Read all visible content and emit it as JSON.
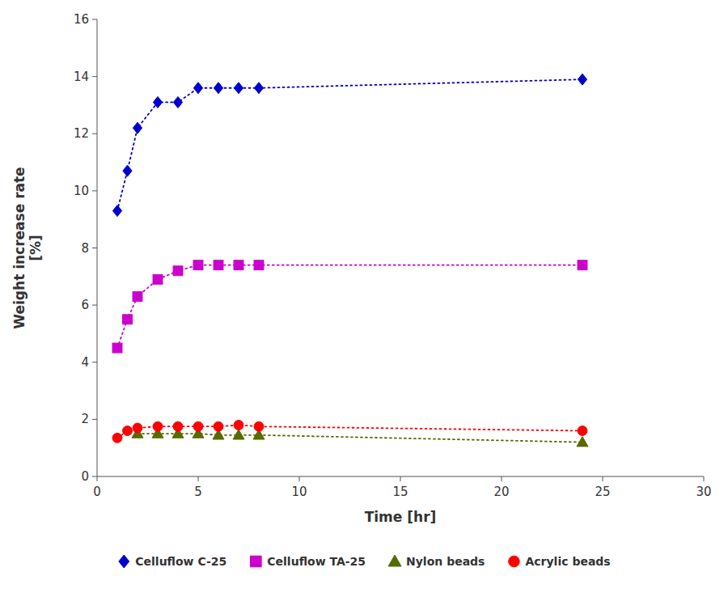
{
  "chart_data": {
    "type": "line",
    "xlabel": "Time [hr]",
    "ylabel": "Weight increase rate\n[%]",
    "xlim": [
      0,
      30
    ],
    "ylim": [
      0,
      16
    ],
    "xticks": [
      0,
      5,
      10,
      15,
      20,
      25,
      30
    ],
    "yticks": [
      0,
      2,
      4,
      6,
      8,
      10,
      12,
      14,
      16
    ],
    "grid": false,
    "legend": "bottom",
    "series": [
      {
        "name": "Celluflow C-25",
        "color": "#0000CC",
        "marker": "diamond",
        "line_style": "dotted",
        "x": [
          1,
          1.5,
          2,
          3,
          4,
          5,
          6,
          7,
          8,
          24
        ],
        "values": [
          9.3,
          10.7,
          12.2,
          13.1,
          13.1,
          13.6,
          13.6,
          13.6,
          13.6,
          13.9
        ]
      },
      {
        "name": "Celluflow TA-25",
        "color": "#CC00CC",
        "marker": "square",
        "line_style": "dotted",
        "x": [
          1,
          1.5,
          2,
          3,
          4,
          5,
          6,
          7,
          8,
          24
        ],
        "values": [
          4.5,
          5.5,
          6.3,
          6.9,
          7.2,
          7.4,
          7.4,
          7.4,
          7.4,
          7.4
        ]
      },
      {
        "name": "Nylon beads",
        "color": "#556B00",
        "marker": "triangle",
        "line_style": "dotted",
        "x": [
          2,
          3,
          4,
          5,
          6,
          7,
          8,
          24
        ],
        "values": [
          1.5,
          1.5,
          1.5,
          1.5,
          1.45,
          1.45,
          1.45,
          1.2
        ]
      },
      {
        "name": "Acrylic beads",
        "color": "#FF0000",
        "marker": "circle",
        "line_style": "dotted",
        "x": [
          1,
          1.5,
          2,
          3,
          4,
          5,
          6,
          7,
          8,
          24
        ],
        "values": [
          1.35,
          1.6,
          1.7,
          1.75,
          1.75,
          1.75,
          1.75,
          1.8,
          1.75,
          1.6
        ]
      }
    ]
  }
}
